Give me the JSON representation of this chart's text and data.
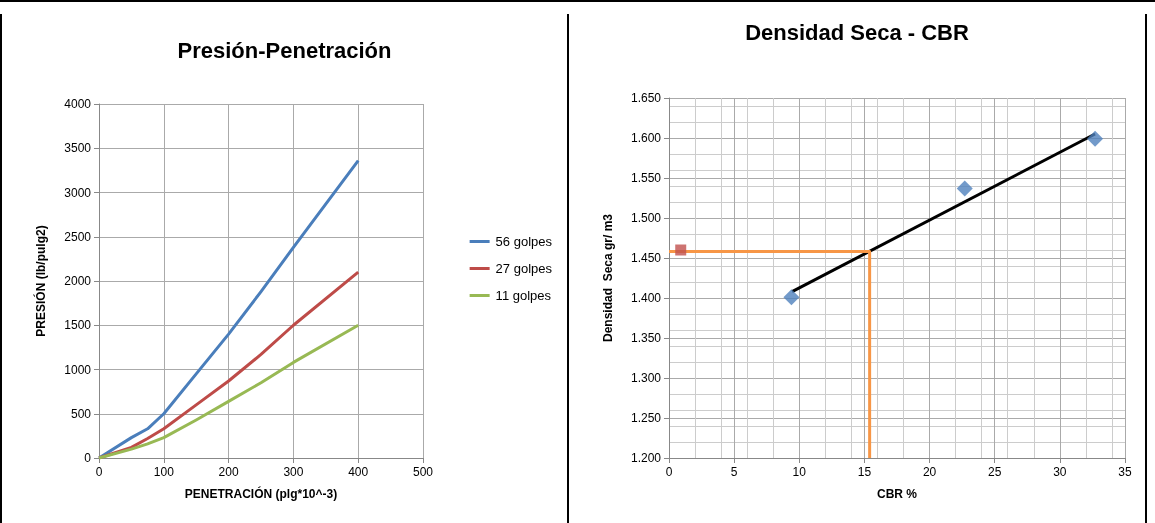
{
  "chart_data": [
    {
      "type": "line",
      "title": "Presión-Penetración",
      "xlabel": "PENETRACIÓN (plg*10^-3)",
      "ylabel": "PRESIÓN (lb/pulg2)",
      "x": [
        0,
        50,
        75,
        100,
        150,
        200,
        250,
        300,
        400
      ],
      "series": [
        {
          "name": "56 golpes",
          "color": "#4a7ebb",
          "values": [
            0,
            230,
            330,
            500,
            950,
            1400,
            1880,
            2380,
            3360
          ]
        },
        {
          "name": "27 golpes",
          "color": "#be4b48",
          "values": [
            0,
            120,
            220,
            330,
            600,
            870,
            1170,
            1500,
            2100
          ]
        },
        {
          "name": "11 golpes",
          "color": "#98b954",
          "values": [
            0,
            100,
            160,
            230,
            430,
            640,
            850,
            1080,
            1500
          ]
        }
      ],
      "xlim": [
        0,
        500
      ],
      "xticks": [
        0,
        100,
        200,
        300,
        400,
        500
      ],
      "ylim": [
        0,
        4000
      ],
      "yticks": [
        0,
        500,
        1000,
        1500,
        2000,
        2500,
        3000,
        3500,
        4000
      ],
      "grid": true,
      "legend": "right",
      "marker": "none"
    },
    {
      "type": "scatter",
      "title": "Densidad Seca - CBR",
      "xlabel": "CBR %",
      "ylabel": "Densidad  Seca gr/ m3",
      "series": [
        {
          "marker": "diamond",
          "color": "#4f81bd",
          "x": [
            9.4,
            22.7,
            32.7
          ],
          "values": [
            1.401,
            1.537,
            1.599
          ]
        },
        {
          "marker": "square",
          "color": "#c0504d",
          "x": [
            0.9
          ],
          "values": [
            1.46
          ]
        },
        {
          "type": "line",
          "marker": "none",
          "color": "#000000",
          "x": [
            9.45,
            32.7
          ],
          "values": [
            1.408,
            1.605
          ]
        },
        {
          "type": "line",
          "marker": "none",
          "color": "#f79646",
          "x": [
            0,
            15.4,
            15.4
          ],
          "values": [
            1.458,
            1.458,
            1.2
          ]
        }
      ],
      "xlim": [
        0,
        35
      ],
      "xticks": [
        0,
        5,
        10,
        15,
        20,
        25,
        30,
        35
      ],
      "ylim": [
        1.2,
        1.65
      ],
      "yticks": [
        {
          "value": 1.2,
          "label": "1.200"
        },
        {
          "value": 1.25,
          "label": "1.250"
        },
        {
          "value": 1.3,
          "label": "1.300"
        },
        {
          "value": 1.35,
          "label": "1.350"
        },
        {
          "value": 1.4,
          "label": "1.400"
        },
        {
          "value": 1.45,
          "label": "1.450"
        },
        {
          "value": 1.5,
          "label": "1.500"
        },
        {
          "value": 1.55,
          "label": "1.550"
        },
        {
          "value": 1.6,
          "label": "1.600"
        },
        {
          "value": 1.65,
          "label": "1.650"
        }
      ],
      "grid": true,
      "legend": false
    }
  ]
}
